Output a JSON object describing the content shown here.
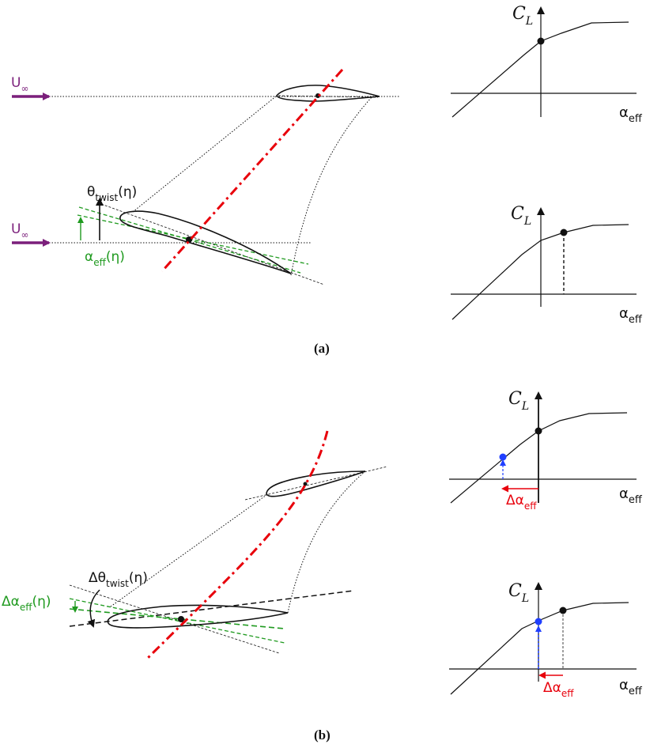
{
  "captions": {
    "a": "(a)",
    "b": "(b)"
  },
  "symbols": {
    "u_inf_main": "U",
    "u_inf_sub": "∞",
    "theta_twist_main": "θ",
    "theta_twist_sub": "twist",
    "theta_twist_arg": "(η)",
    "alpha_eff_main": "α",
    "alpha_eff_sub": "eff",
    "alpha_eff_arg": "(η)",
    "delta_theta_main": "Δθ",
    "delta_theta_sub": "twist",
    "delta_theta_arg": "(η)",
    "delta_alpha_main": "Δα",
    "delta_alpha_sub": "eff",
    "delta_alpha_arg": "(η)",
    "cl_main": "C",
    "cl_sub": "L",
    "axis_main": "α",
    "axis_sub": "eff",
    "shift_main": "Δα",
    "shift_sub": "eff"
  },
  "colors": {
    "flow_arrow": "#7b1f7b",
    "axis_line": "#e8000b",
    "alpha_green": "#1f9a1f",
    "shift_red": "#e8000b",
    "shifted_point": "#1f3fff",
    "ink": "#111111"
  },
  "icons": [
    "flow-arrow-icon",
    "airfoil-icon",
    "lift-curve-icon"
  ]
}
